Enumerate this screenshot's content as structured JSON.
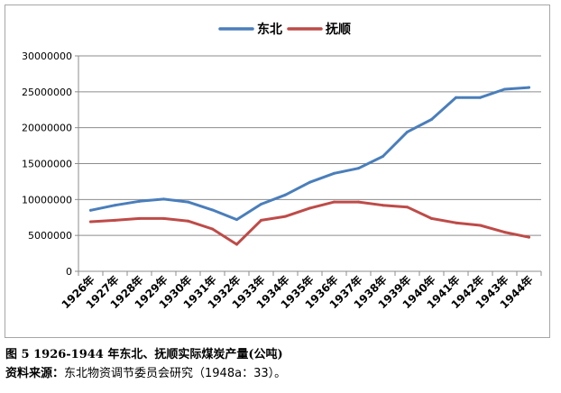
{
  "chart_data": {
    "type": "line",
    "title": "",
    "xlabel": "",
    "ylabel": "",
    "categories": [
      "1926年",
      "1927年",
      "1928年",
      "1929年",
      "1930年",
      "1931年",
      "1932年",
      "1933年",
      "1934年",
      "1935年",
      "1936年",
      "1937年",
      "1938年",
      "1939年",
      "1940年",
      "1941年",
      "1942年",
      "1943年",
      "1944年"
    ],
    "series": [
      {
        "name": "东北",
        "color": "#4a7ebb",
        "values": [
          8500000,
          9200000,
          9750000,
          10050000,
          9650000,
          8550000,
          7200000,
          9350000,
          10650000,
          12400000,
          13650000,
          14350000,
          16000000,
          19400000,
          21150000,
          24200000,
          24200000,
          25350000,
          25600000
        ]
      },
      {
        "name": "抚顺",
        "color": "#be4b48",
        "values": [
          6900000,
          7100000,
          7350000,
          7350000,
          7000000,
          5900000,
          3750000,
          7100000,
          7650000,
          8800000,
          9650000,
          9650000,
          9200000,
          8950000,
          7350000,
          6750000,
          6400000,
          5450000,
          4750000
        ]
      }
    ],
    "ylim": [
      0,
      30000000
    ],
    "yticks": [
      0,
      5000000,
      10000000,
      15000000,
      20000000,
      25000000,
      30000000
    ],
    "ytick_labels": [
      "0",
      "5000000",
      "10000000",
      "15000000",
      "20000000",
      "25000000",
      "30000000"
    ],
    "grid": true,
    "legend_position": "top-center"
  },
  "caption": {
    "title": "图 5 1926-1944 年东北、抚顺实际煤炭产量(公吨)",
    "source_label": "资料来源：",
    "source_text": "东北物资调节委员会研究（1948a：33）。"
  }
}
